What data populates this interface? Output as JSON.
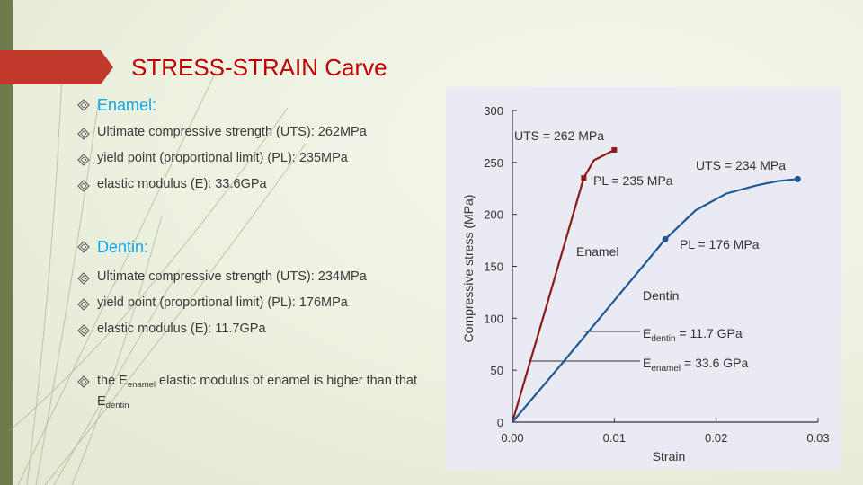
{
  "slide": {
    "title": "STRESS-STRAIN Carve",
    "enamel_heading": "Enamel:",
    "enamel_items": [
      "Ultimate compressive strength (UTS): 262MPa",
      "yield point (proportional limit) (PL): 235MPa",
      "elastic modulus (E): 33.6GPa"
    ],
    "dentin_heading": "Dentin:",
    "dentin_items": [
      "Ultimate compressive strength (UTS): 234MPa",
      "yield point (proportional limit) (PL): 176MPa",
      "elastic modulus (E): 11.7GPa"
    ],
    "note": {
      "prefix": "the E",
      "sub1": "enamel",
      "middle": " elastic modulus of enamel is higher than that",
      "line2": "E",
      "sub2": "dentin"
    }
  },
  "colors": {
    "title": "#c00000",
    "heading": "#0fa8e6",
    "enamel": "#8b1a1a",
    "dentin": "#1f5a96",
    "accent_bar": "#6f7c4a",
    "title_tab": "#c0392b"
  },
  "icons": {
    "bullet": "diamond-bullet-icon"
  },
  "chart_data": {
    "type": "line",
    "xlabel": "Strain",
    "ylabel": "Compressive stress (MPa)",
    "xlim": [
      0,
      0.03
    ],
    "ylim": [
      0,
      300
    ],
    "xticks": [
      "0.00",
      "0.01",
      "0.02",
      "0.03"
    ],
    "yticks": [
      "0",
      "50",
      "100",
      "150",
      "200",
      "250",
      "300"
    ],
    "grid": false,
    "series": [
      {
        "name": "Enamel",
        "points": [
          [
            0,
            0
          ],
          [
            0.0035,
            117
          ],
          [
            0.007,
            235
          ],
          [
            0.008,
            252
          ],
          [
            0.01,
            262
          ]
        ],
        "markers": [
          [
            0.007,
            235
          ],
          [
            0.01,
            262
          ]
        ]
      },
      {
        "name": "Dentin",
        "points": [
          [
            0,
            0
          ],
          [
            0.005,
            58
          ],
          [
            0.01,
            117
          ],
          [
            0.015,
            176
          ],
          [
            0.018,
            204
          ],
          [
            0.021,
            220
          ],
          [
            0.024,
            228
          ],
          [
            0.026,
            232
          ],
          [
            0.028,
            234
          ]
        ],
        "markers": [
          [
            0.015,
            176
          ],
          [
            0.028,
            234
          ]
        ]
      }
    ],
    "annotations": [
      {
        "text": "UTS = 262 MPa"
      },
      {
        "text": "PL = 235 MPa"
      },
      {
        "text": "UTS = 234 MPa"
      },
      {
        "text": "PL = 176 MPa"
      },
      {
        "text": "Enamel"
      },
      {
        "text": "Dentin"
      },
      {
        "text": "E",
        "sub": "dentin",
        "rest": " = 11.7 GPa"
      },
      {
        "text": "E",
        "sub": "enamel",
        "rest": " = 33.6 GPa"
      }
    ]
  }
}
